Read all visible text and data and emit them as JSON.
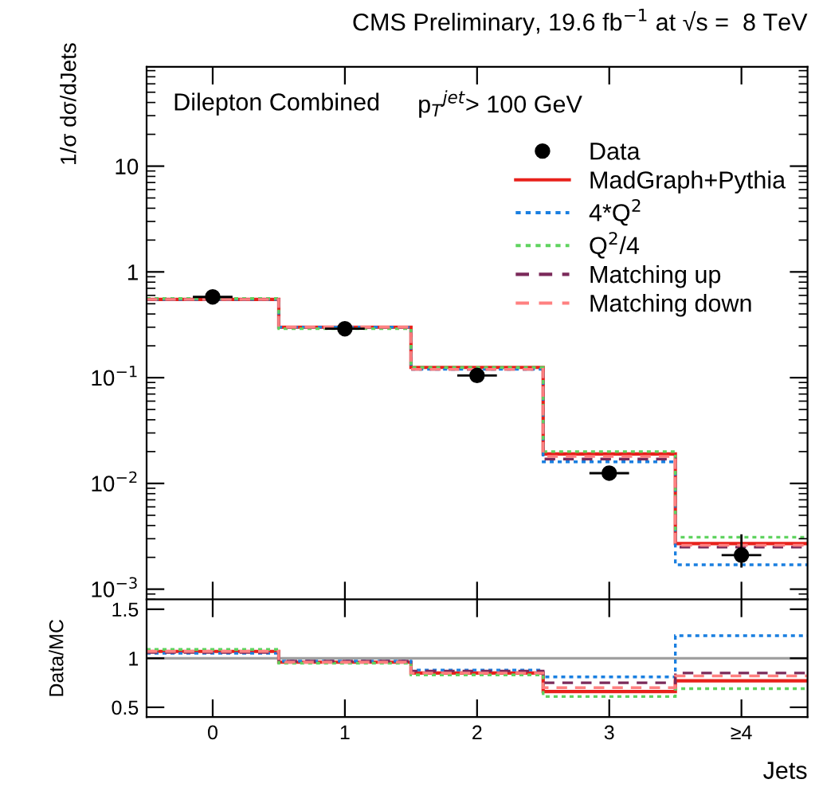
{
  "chart_data": [
    {
      "type": "histogram",
      "title": "CMS Preliminary, 19.6 fb$^{−1}$ at √s =  8 TeV",
      "ylabel": "1/σ dσ/dJets",
      "annotations": [
        "Dilepton Combined",
        "p$_{T}$$^{jet}$> 100 GeV"
      ],
      "bins": [
        -0.5,
        0.5,
        1.5,
        2.5,
        3.5,
        4.5
      ],
      "xlim": [
        -0.5,
        4.5
      ],
      "xticks": [
        0,
        1,
        2,
        3,
        4
      ],
      "log": "y",
      "ylim": [
        0.0008,
        87
      ],
      "yticks": [
        {
          "value": 0.001,
          "label": "10$^{−3}$"
        },
        {
          "value": 0.01,
          "label": "10$^{−2}$"
        },
        {
          "value": 0.1,
          "label": "10$^{−1}$"
        },
        1,
        10
      ],
      "tick_labels": "y",
      "grid": false,
      "legend": "top right",
      "series": [
        {
          "name": "Data",
          "type": "scatter",
          "color": "#000000",
          "marker": "circle",
          "x": [
            0,
            1,
            2,
            3,
            4
          ],
          "values": [
            0.58,
            0.29,
            0.105,
            0.0125,
            0.0021
          ],
          "errors": [
            [
              0.56,
              0.6
            ],
            [
              0.28,
              0.3
            ],
            [
              0.098,
              0.113
            ],
            [
              0.011,
              0.014
            ],
            [
              0.0016,
              0.0033
            ]
          ],
          "xerrors": [
            0.15,
            0.15,
            0.15,
            0.15,
            0.15
          ]
        },
        {
          "name": "MadGraph+Pythia",
          "color": "#e8211b",
          "line_style": "solid",
          "values": [
            0.55,
            0.3,
            0.125,
            0.019,
            0.0027
          ]
        },
        {
          "name": "4*Q$^{2}$",
          "color": "#1a7fe0",
          "line_style": "dotted",
          "values": [
            0.55,
            0.3,
            0.12,
            0.016,
            0.0017
          ]
        },
        {
          "name": "Q$^{2}$/4",
          "color": "#5fd35f",
          "line_style": "dotted",
          "values": [
            0.56,
            0.29,
            0.125,
            0.02,
            0.0031
          ]
        },
        {
          "name": "Matching up",
          "color": "#7b2a5a",
          "line_style": "dashed",
          "values": [
            0.55,
            0.3,
            0.12,
            0.017,
            0.0025
          ]
        },
        {
          "name": "Matching down",
          "color": "#ff8080",
          "line_style": "dashed",
          "values": [
            0.55,
            0.3,
            0.12,
            0.018,
            0.0026
          ]
        }
      ]
    },
    {
      "type": "histogram",
      "xlabel": "Jets",
      "ylabel": "Data/MC",
      "bins": [
        -0.5,
        0.5,
        1.5,
        2.5,
        3.5,
        4.5
      ],
      "xlim": [
        -0.5,
        4.5
      ],
      "xticks": [
        0,
        1,
        2,
        3,
        {
          "value": 4,
          "label": "≥4"
        }
      ],
      "ylim": [
        0.4,
        1.6
      ],
      "yticks": [
        0.5,
        1,
        1.5
      ],
      "grid": false,
      "ref_lines": [
        {
          "axis": "y",
          "value": 1,
          "color": "#a0a0a0"
        }
      ],
      "series": [
        {
          "color": "#e8211b",
          "line_style": "solid",
          "values": [
            1.07,
            0.96,
            0.85,
            0.66,
            0.77
          ]
        },
        {
          "color": "#1a7fe0",
          "line_style": "dotted",
          "values": [
            1.05,
            0.97,
            0.88,
            0.81,
            1.23
          ]
        },
        {
          "color": "#5fd35f",
          "line_style": "dotted",
          "values": [
            1.09,
            0.95,
            0.83,
            0.61,
            0.69
          ]
        },
        {
          "color": "#7b2a5a",
          "line_style": "dashed",
          "values": [
            1.06,
            0.97,
            0.87,
            0.75,
            0.85
          ]
        },
        {
          "color": "#ff8080",
          "line_style": "dashed",
          "values": [
            1.07,
            0.96,
            0.85,
            0.7,
            0.82
          ]
        }
      ]
    }
  ]
}
